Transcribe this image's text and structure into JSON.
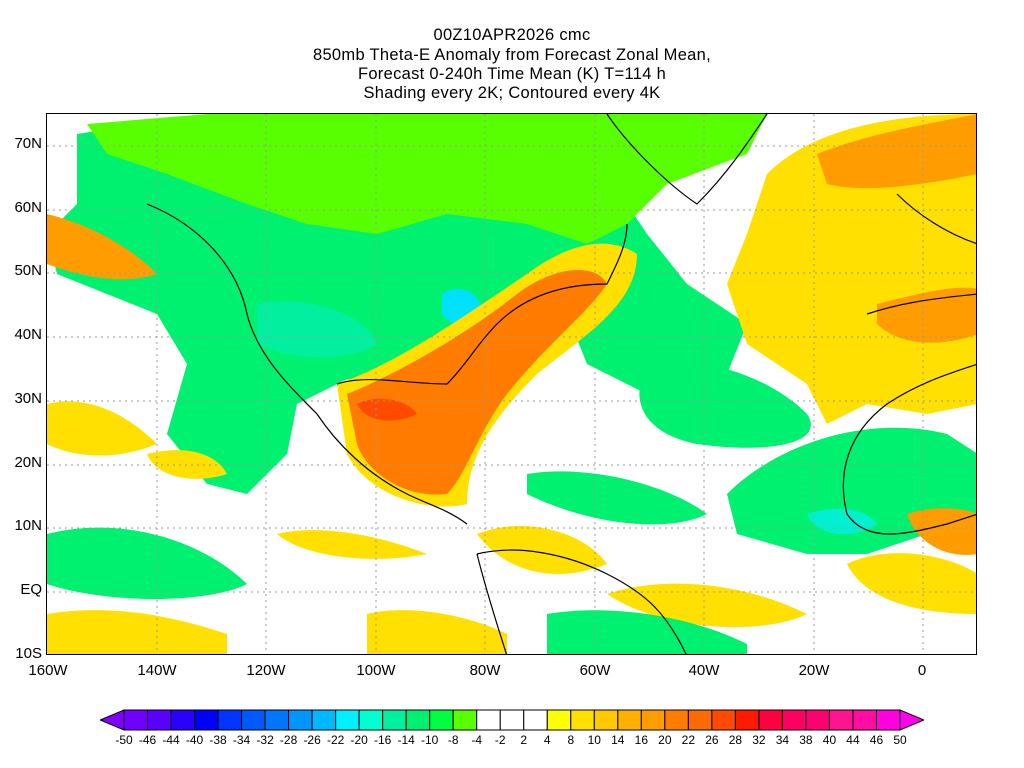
{
  "title": {
    "line1": "00Z10APR2026 cmc",
    "line2": "850mb Theta-E Anomaly from Forecast Zonal Mean,",
    "line3": "Forecast 0-240h Time Mean (K) T=114 h",
    "line4": "Shading every 2K; Contoured every 4K"
  },
  "axes": {
    "lat_labels": [
      "70N",
      "60N",
      "50N",
      "40N",
      "30N",
      "20N",
      "10N",
      "EQ",
      "10S"
    ],
    "lon_labels": [
      "160W",
      "140W",
      "120W",
      "100W",
      "80W",
      "60W",
      "40W",
      "20W",
      "0"
    ]
  },
  "colorbar": {
    "labels": [
      "-50",
      "-46",
      "-44",
      "-40",
      "-38",
      "-34",
      "-32",
      "-28",
      "-26",
      "-22",
      "-20",
      "-16",
      "-14",
      "-10",
      "-8",
      "-4",
      "-2",
      "2",
      "4",
      "8",
      "10",
      "14",
      "16",
      "20",
      "22",
      "26",
      "28",
      "32",
      "34",
      "38",
      "40",
      "44",
      "46",
      "50"
    ],
    "colors": [
      "#7f00ff",
      "#7000ff",
      "#5a00ff",
      "#2a00ff",
      "#0000ff",
      "#0034ff",
      "#0058ff",
      "#0076ff",
      "#0096ff",
      "#00b8ff",
      "#00f0ff",
      "#00ffd0",
      "#00f0a0",
      "#00f070",
      "#00ff40",
      "#58ff00",
      "#ffffff",
      "#ffffff",
      "#ffffff",
      "#ffff00",
      "#ffe000",
      "#ffc800",
      "#ffb000",
      "#ff9c00",
      "#ff7c00",
      "#ff6a00",
      "#ff4a00",
      "#ff1a00",
      "#ff0040",
      "#ff0060",
      "#ff0070",
      "#ff1490",
      "#ff0ca0",
      "#ff00e0",
      "#ff00f0"
    ]
  }
}
